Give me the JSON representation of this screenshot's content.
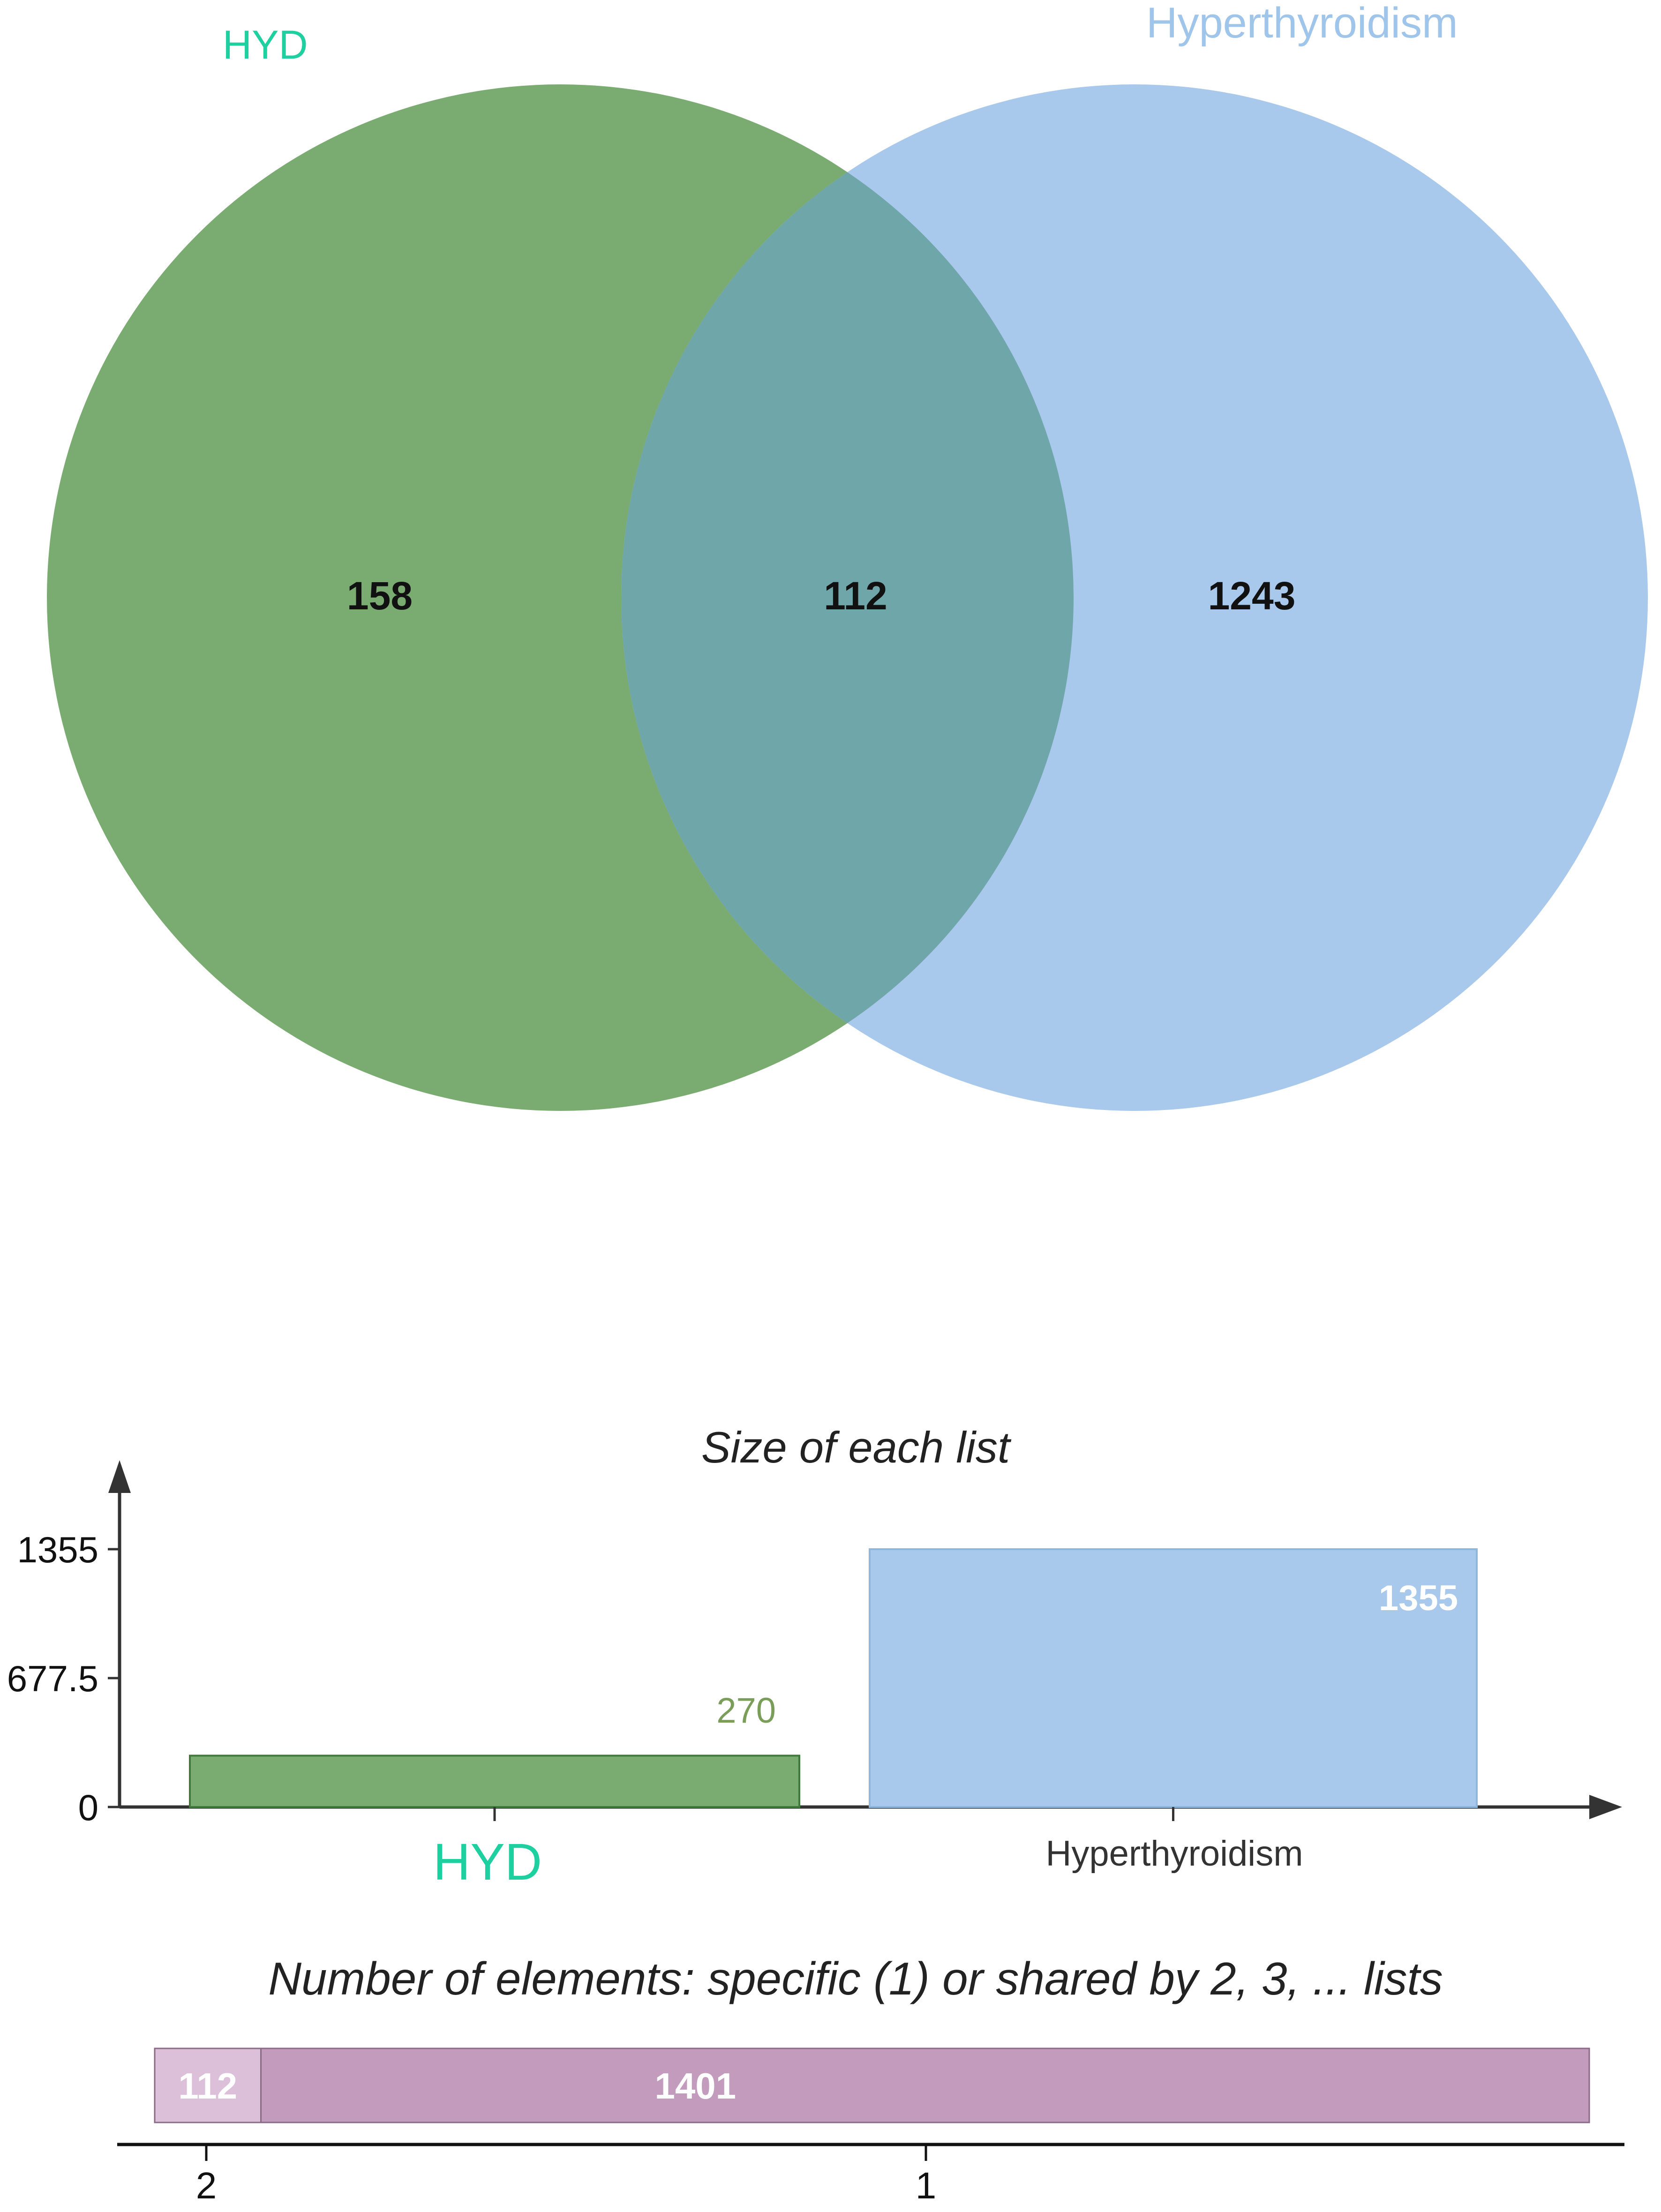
{
  "chart_data": [
    {
      "type": "venn",
      "sets": [
        {
          "name": "HYD",
          "color": "#7aac71",
          "label_color": "#1ecfa0"
        },
        {
          "name": "Hyperthyroidism",
          "color": "#a8c8ec",
          "label_color": "#9fc6ea"
        }
      ],
      "regions": {
        "HYD_only": 158,
        "intersection": 112,
        "Hyperthyroidism_only": 1243
      },
      "overlap_color": "#6fa6aa"
    },
    {
      "type": "bar",
      "title": "Size of each list",
      "categories": [
        "HYD",
        "Hyperthyroidism"
      ],
      "values": [
        270,
        1355
      ],
      "value_labels": [
        "270",
        "1355"
      ],
      "colors": [
        "#7aac71",
        "#a8c8ec"
      ],
      "category_label_colors": [
        "#1ecfa0",
        "#333333"
      ],
      "value_label_colors": [
        "#7a9e5a",
        "#ffffff"
      ],
      "yticks": [
        "1355",
        "677.5",
        "0"
      ],
      "ylim": [
        0,
        1355
      ]
    },
    {
      "type": "bar",
      "orientation": "horizontal-stacked",
      "title": "Number of elements: specific (1) or shared by 2, 3, ... lists",
      "categories": [
        "2",
        "1"
      ],
      "values": [
        112,
        1401
      ],
      "value_labels": [
        "112",
        "1401"
      ],
      "colors": [
        "#dcc0d9",
        "#c29bbd"
      ]
    }
  ]
}
